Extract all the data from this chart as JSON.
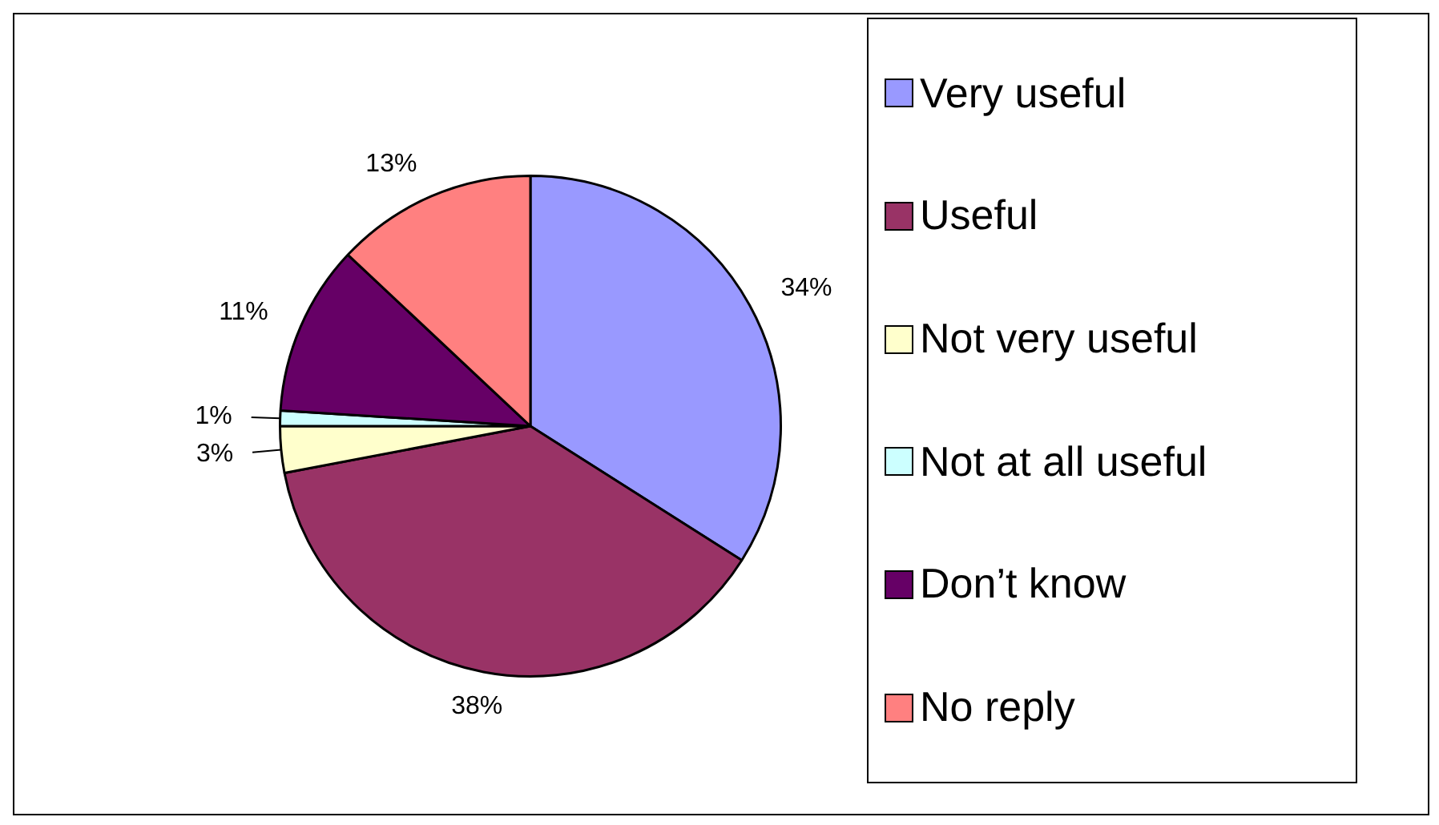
{
  "chart_data": {
    "type": "pie",
    "categories": [
      "Very useful",
      "Useful",
      "Not very useful",
      "Not at all useful",
      "Don’t know",
      "No reply"
    ],
    "values": [
      34,
      38,
      3,
      1,
      11,
      13
    ],
    "colors": [
      "#9999ff",
      "#993366",
      "#ffffcc",
      "#ccffff",
      "#660066",
      "#ff8080"
    ],
    "value_labels": [
      "34%",
      "38%",
      "3%",
      "1%",
      "11%",
      "13%"
    ],
    "legend": "right"
  }
}
